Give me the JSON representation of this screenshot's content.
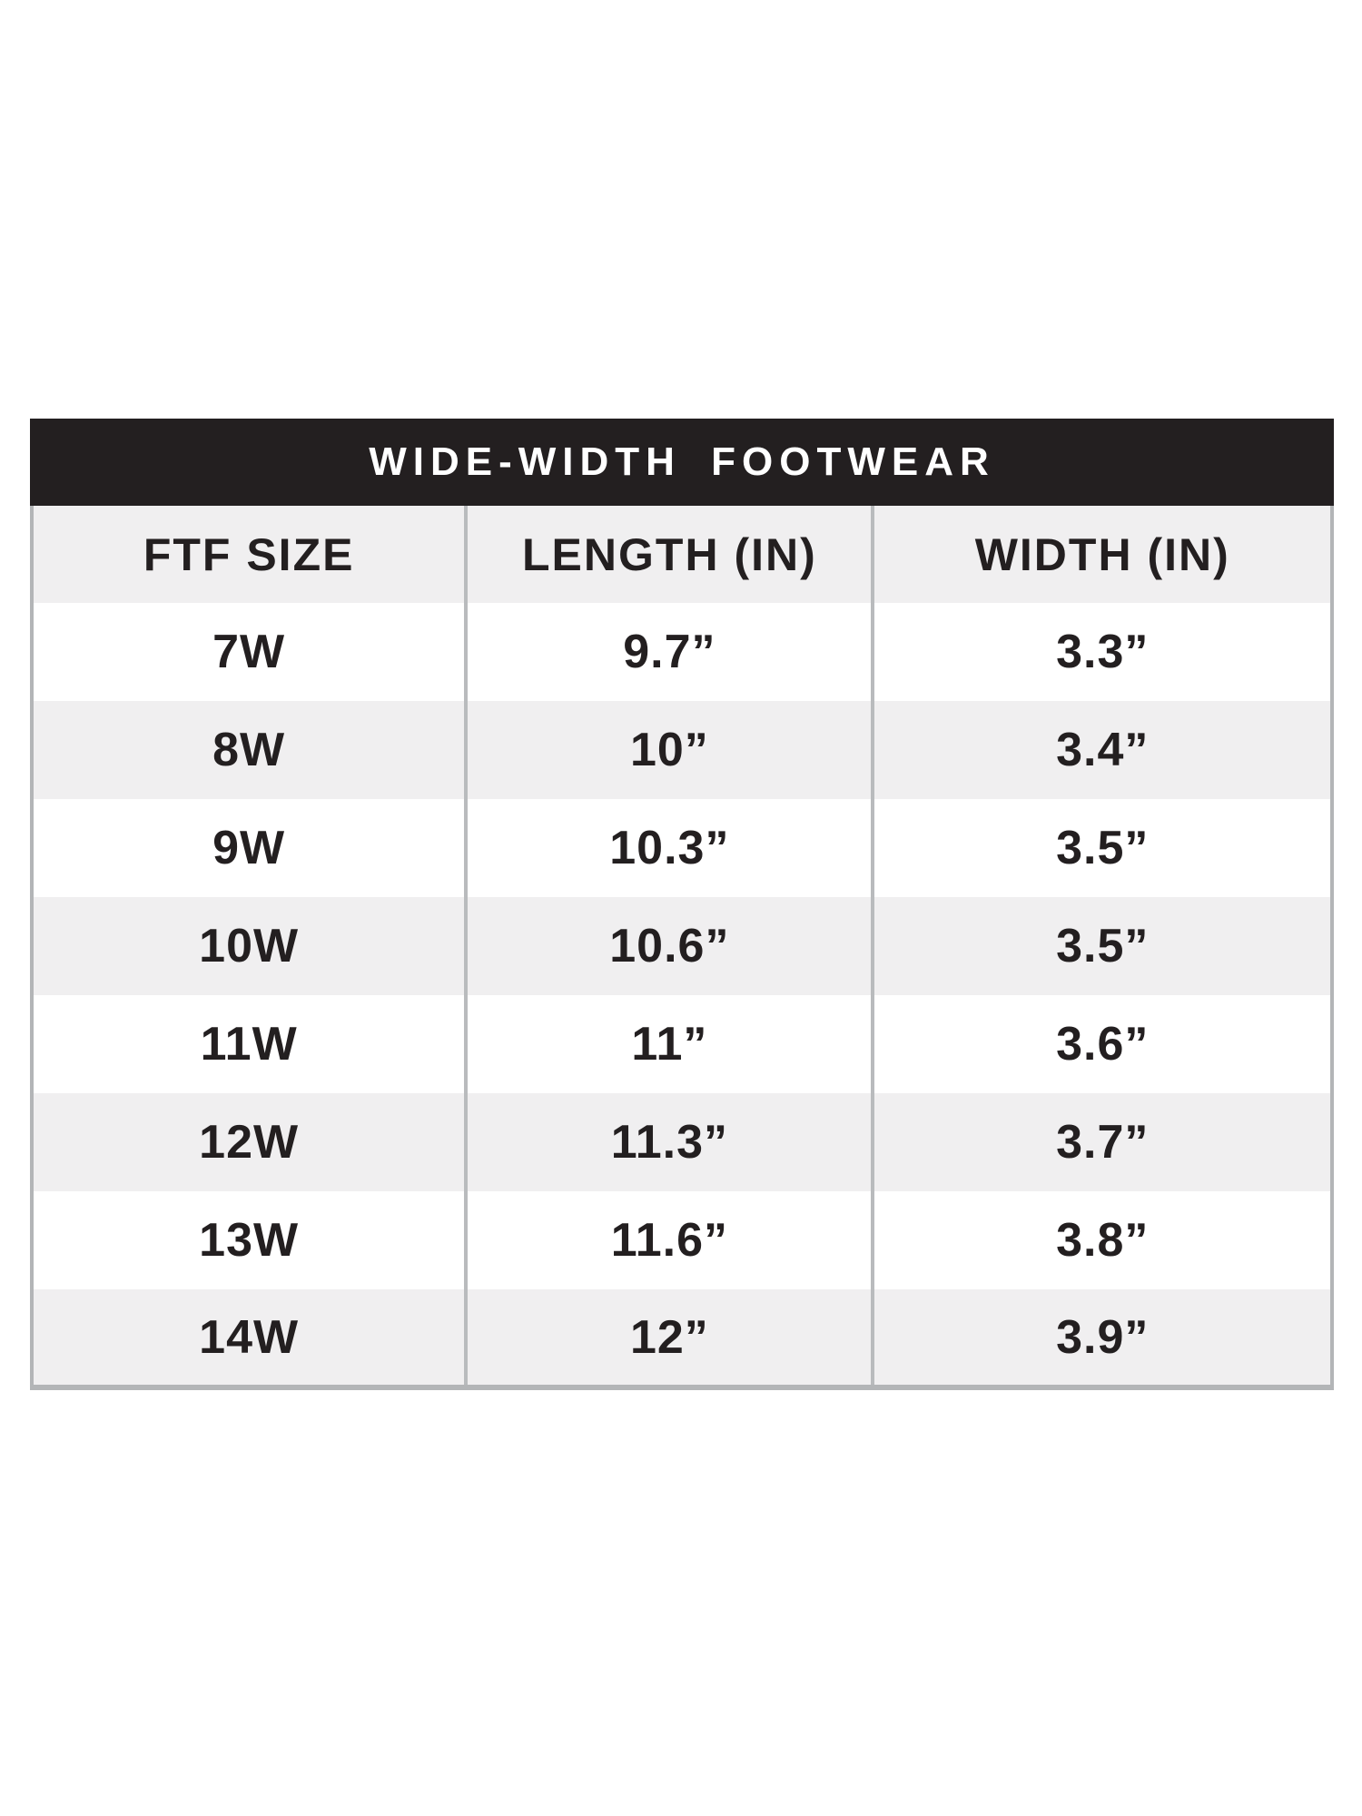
{
  "size_chart": {
    "title": "WIDE-WIDTH FOOTWEAR",
    "columns": [
      "FTF SIZE",
      "LENGTH (IN)",
      "WIDTH (IN)"
    ],
    "rows": [
      {
        "size": "7W",
        "length": "9.7”",
        "width": "3.3”"
      },
      {
        "size": "8W",
        "length": "10”",
        "width": "3.4”"
      },
      {
        "size": "9W",
        "length": "10.3”",
        "width": "3.5”"
      },
      {
        "size": "10W",
        "length": "10.6”",
        "width": "3.5”"
      },
      {
        "size": "11W",
        "length": "11”",
        "width": "3.6”"
      },
      {
        "size": "12W",
        "length": "11.3”",
        "width": "3.7”"
      },
      {
        "size": "13W",
        "length": "11.6”",
        "width": "3.8”"
      },
      {
        "size": "14W",
        "length": "12”",
        "width": "3.9”"
      }
    ],
    "colors": {
      "band": "#231f20",
      "band_text": "#ffffff",
      "row": "#ffffff",
      "row_alt": "#f0eff0",
      "text": "#231f20",
      "divider": "#b9bbbd",
      "border": "#b3b5b7"
    }
  },
  "chart_data": {
    "type": "table",
    "title": "WIDE-WIDTH FOOTWEAR",
    "columns": [
      "FTF SIZE",
      "LENGTH (IN)",
      "WIDTH (IN)"
    ],
    "rows": [
      [
        "7W",
        "9.7”",
        "3.3”"
      ],
      [
        "8W",
        "10”",
        "3.4”"
      ],
      [
        "9W",
        "10.3”",
        "3.5”"
      ],
      [
        "10W",
        "10.6”",
        "3.5”"
      ],
      [
        "11W",
        "11”",
        "3.6”"
      ],
      [
        "12W",
        "11.3”",
        "3.7”"
      ],
      [
        "13W",
        "11.6”",
        "3.8”"
      ],
      [
        "14W",
        "12”",
        "3.9”"
      ]
    ],
    "layout": {
      "header_band": "black, white centered letter-spaced title",
      "row_striping": "white / light gray alternating, header row gray",
      "grid": "vertical dividers only, gray outer border on left/right/bottom"
    }
  }
}
